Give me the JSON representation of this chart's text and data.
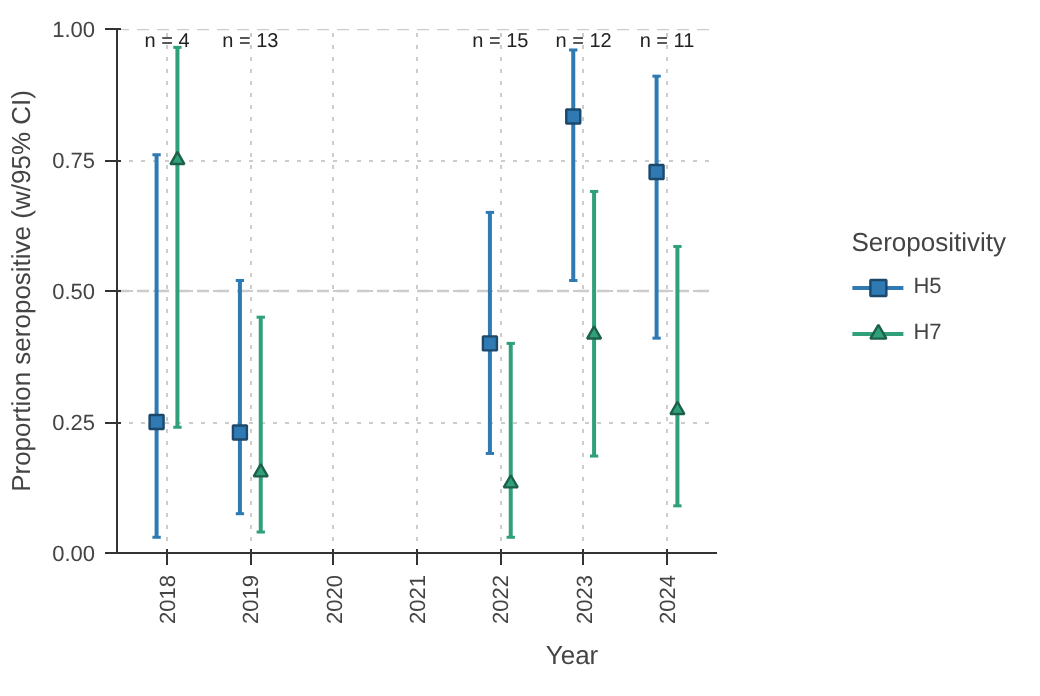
{
  "chart_data": {
    "type": "scatter",
    "xlabel": "Year",
    "ylabel": "Proportion seropositive (w/95% CI)",
    "legend_title": "Seropositivity",
    "categories": [
      "2018",
      "2019",
      "2020",
      "2021",
      "2022",
      "2023",
      "2024"
    ],
    "series": [
      {
        "name": "H5",
        "color": "#2f7ab3",
        "marker": "square",
        "values": [
          0.25,
          0.23,
          null,
          null,
          0.4,
          0.833,
          0.727
        ],
        "errors": [
          [
            0.03,
            0.76
          ],
          [
            0.075,
            0.52
          ],
          null,
          null,
          [
            0.19,
            0.65
          ],
          [
            0.52,
            0.96
          ],
          [
            0.41,
            0.91
          ]
        ]
      },
      {
        "name": "H7",
        "color": "#30a07a",
        "marker": "triangle",
        "values": [
          0.75,
          0.154,
          null,
          null,
          0.133,
          0.417,
          0.273
        ],
        "errors": [
          [
            0.24,
            0.965
          ],
          [
            0.04,
            0.45
          ],
          null,
          null,
          [
            0.03,
            0.4
          ],
          [
            0.185,
            0.69
          ],
          [
            0.09,
            0.585
          ]
        ]
      }
    ],
    "ylim": [
      0,
      1.0
    ],
    "yticks": [
      {
        "value": 0,
        "label": "0.00"
      },
      {
        "value": 0.25,
        "label": "0.25"
      },
      {
        "value": 0.5,
        "label": "0.50"
      },
      {
        "value": 0.75,
        "label": "0.75"
      },
      {
        "value": 1.0,
        "label": "1.00"
      }
    ],
    "ref_lines": [
      {
        "axis": "y",
        "value": 0.5,
        "label": null,
        "color": "#cccccc",
        "line_style": "dashed"
      },
      {
        "axis": "y",
        "value": 1.0,
        "label": null,
        "color": "#cccccc",
        "line_style": "dashed"
      }
    ],
    "annotations": [
      "n = 4",
      "n = 13",
      "n = 15",
      "n = 12",
      "n = 11"
    ],
    "grid": true,
    "legend": "right"
  }
}
